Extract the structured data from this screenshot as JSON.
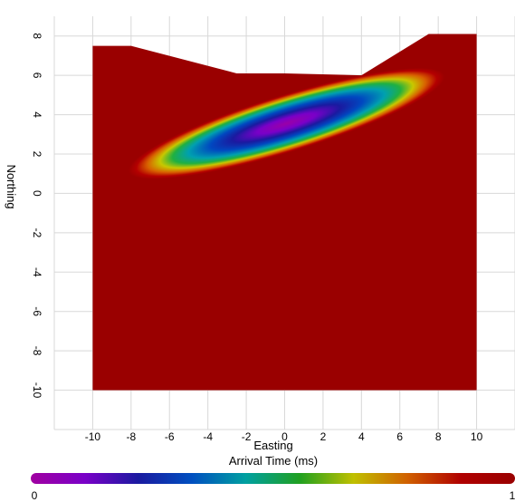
{
  "chart_data": {
    "type": "heatmap",
    "title": "",
    "xlabel": "Easting",
    "ylabel": "Northing",
    "xlim": [
      -12,
      12
    ],
    "ylim": [
      -12,
      9
    ],
    "x_ticks": [
      "-10",
      "-8",
      "-6",
      "-4",
      "-2",
      "0",
      "2",
      "4",
      "6",
      "8",
      "10"
    ],
    "y_ticks": [
      "8",
      "6",
      "4",
      "2",
      "0",
      "-2",
      "-4",
      "-6",
      "-8",
      "-10"
    ],
    "grid": true,
    "colorbar": {
      "label": "Arrival Time (ms)",
      "min_label": "0",
      "max_label": "1",
      "colors": [
        "#a000a0",
        "#7a00c8",
        "#1a1aa0",
        "#0050c0",
        "#00a0a0",
        "#20a020",
        "#c0c000",
        "#d06000",
        "#b00000",
        "#990000"
      ]
    },
    "field_outline": [
      [
        -10,
        7.5
      ],
      [
        -8,
        7.5
      ],
      [
        -2.5,
        6.1
      ],
      [
        0,
        6.1
      ],
      [
        4,
        6.0
      ],
      [
        7.5,
        8.1
      ],
      [
        10,
        8.1
      ],
      [
        10,
        -10
      ],
      [
        -10,
        -10
      ]
    ],
    "background_value": 1.0,
    "anomaly": {
      "shape": "ellipse",
      "center": [
        0.1,
        3.55
      ],
      "semi_major": 8.6,
      "semi_minor": 1.45,
      "angle_deg": 17,
      "min_value": 0
    }
  }
}
